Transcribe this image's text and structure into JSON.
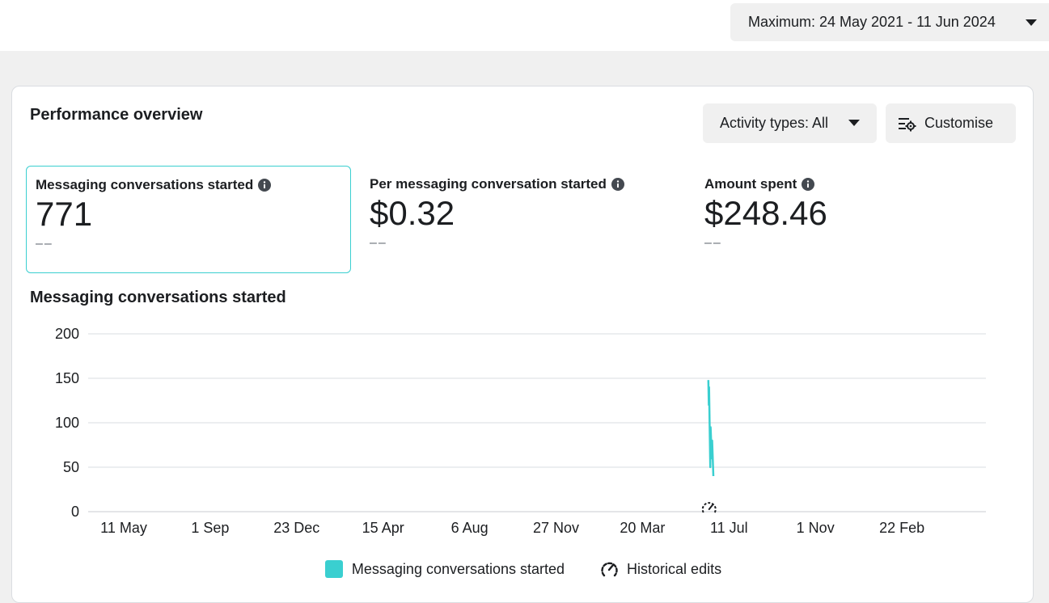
{
  "header": {
    "date_range": "Maximum: 24 May 2021 - 11 Jun 2024"
  },
  "card": {
    "title": "Performance overview",
    "activity_button": "Activity types: All",
    "customise_button": "Customise",
    "metrics": [
      {
        "label": "Messaging conversations started",
        "value": "771",
        "comparison": "––"
      },
      {
        "label": "Per messaging conversation started",
        "value": "$0.32",
        "comparison": "––"
      },
      {
        "label": "Amount spent",
        "value": "$248.46",
        "comparison": "––"
      }
    ],
    "chart_title": "Messaging conversations started",
    "legend": {
      "series": "Messaging conversations started",
      "edits": "Historical edits"
    }
  },
  "colors": {
    "accent": "#3acfd0",
    "grid": "#dadde1",
    "text": "#1c1e21"
  },
  "icons": [
    "caret-down-icon",
    "customise-icon",
    "info-icon",
    "historical-edit-icon"
  ],
  "chart_data": {
    "type": "line",
    "x_ticks": [
      "11 May",
      "1 Sep",
      "23 Dec",
      "15 Apr",
      "6 Aug",
      "27 Nov",
      "20 Mar",
      "11 Jul",
      "1 Nov",
      "22 Feb"
    ],
    "y_ticks": [
      0,
      50,
      100,
      150,
      200
    ],
    "ylim": [
      0,
      200
    ],
    "series": [
      {
        "name": "Messaging conversations started",
        "points": [
          [
            "20 Mar",
            0
          ],
          [
            "13 Jun",
            0
          ],
          [
            "14 Jun",
            148
          ],
          [
            "14 Jun",
            120
          ],
          [
            "15 Jun",
            140
          ],
          [
            "16 Jun",
            50
          ],
          [
            "17 Jun",
            95
          ],
          [
            "18 Jun",
            60
          ],
          [
            "19 Jun",
            80
          ],
          [
            "20 Jun",
            40
          ]
        ]
      }
    ],
    "annotation": "historical edit marker near 14 Jun"
  }
}
